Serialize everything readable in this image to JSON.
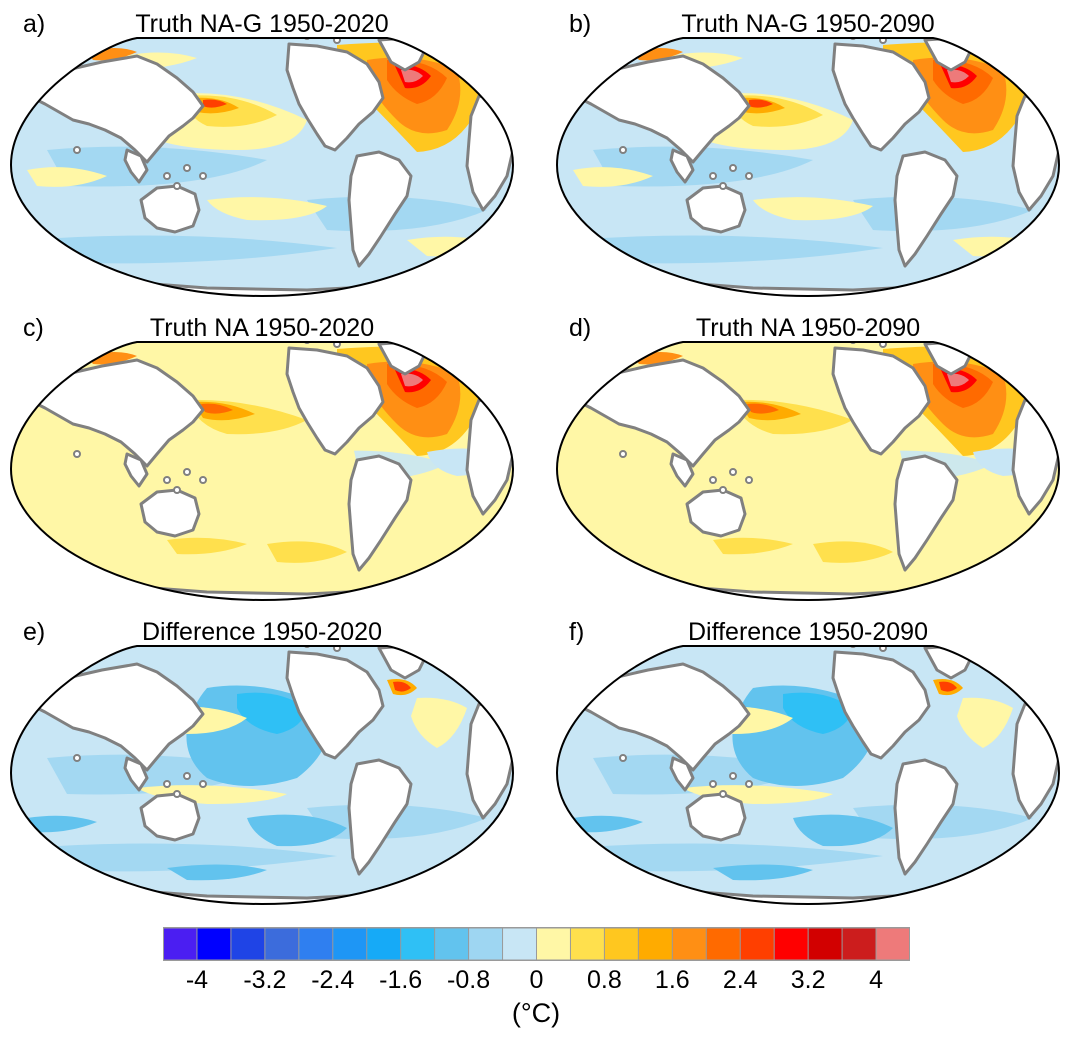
{
  "panels": [
    {
      "label": "a)",
      "title": "Truth NA-G 1950-2020",
      "variant": "nag"
    },
    {
      "label": "b)",
      "title": "Truth NA-G 1950-2090",
      "variant": "nag2"
    },
    {
      "label": "c)",
      "title": "Truth NA 1950-2020",
      "variant": "na"
    },
    {
      "label": "d)",
      "title": "Truth NA 1950-2090",
      "variant": "na2"
    },
    {
      "label": "e)",
      "title": "Difference 1950-2020",
      "variant": "diff"
    },
    {
      "label": "f)",
      "title": "Difference 1950-2090",
      "variant": "diff2"
    }
  ],
  "colorbar": {
    "colors": [
      "#4b1ef2",
      "#0000ff",
      "#1f44e6",
      "#3c6cdc",
      "#2f7ff0",
      "#1e96f5",
      "#16aaf7",
      "#2fc0f5",
      "#62c3ee",
      "#9ed6f2",
      "#c8e6f5",
      "#fff7a6",
      "#ffe04d",
      "#ffc71f",
      "#ffab00",
      "#ff8f14",
      "#ff6a00",
      "#ff3f00",
      "#ff0000",
      "#d20000",
      "#cc1d1d",
      "#ee7a7a"
    ],
    "tick_labels": [
      "-4",
      "-3.2",
      "-2.4",
      "-1.6",
      "-0.8",
      "0",
      "0.8",
      "1.6",
      "2.4",
      "3.2",
      "4"
    ],
    "units": "(°C)"
  },
  "styles": {
    "land_color": "#ffffff",
    "coast_color": "#808080",
    "outline_color": "#000000"
  }
}
